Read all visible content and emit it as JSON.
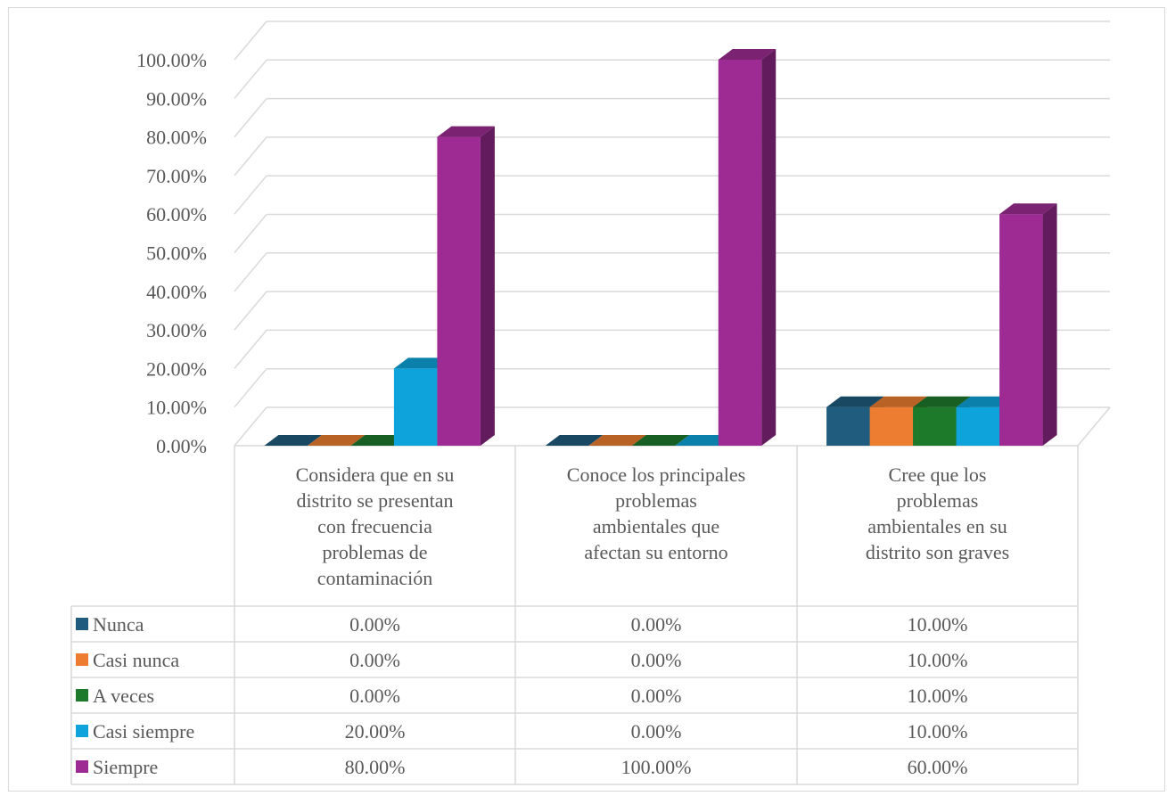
{
  "chart_data": {
    "type": "bar",
    "title": "",
    "xlabel": "",
    "ylabel": "",
    "ylim": [
      0,
      100
    ],
    "y_ticks": [
      "0.00%",
      "10.00%",
      "20.00%",
      "30.00%",
      "40.00%",
      "50.00%",
      "60.00%",
      "70.00%",
      "80.00%",
      "90.00%",
      "100.00%"
    ],
    "grid": true,
    "legend": "data-table",
    "categories": [
      [
        "Considera que en su",
        "distrito se presentan",
        "con frecuencia",
        "problemas de",
        "contaminación"
      ],
      [
        "Conoce los principales",
        "problemas",
        "ambientales que",
        "afectan su entorno"
      ],
      [
        "Cree que los",
        "problemas",
        "ambientales en su",
        "distrito son graves"
      ]
    ],
    "series": [
      {
        "name": "Nunca",
        "color": "#1f5c7e",
        "values": [
          0,
          0,
          10
        ],
        "labels": [
          "0.00%",
          "0.00%",
          "10.00%"
        ]
      },
      {
        "name": "Casi nunca",
        "color": "#ed7d31",
        "values": [
          0,
          0,
          10
        ],
        "labels": [
          "0.00%",
          "0.00%",
          "10.00%"
        ]
      },
      {
        "name": "A veces",
        "color": "#1e7a2b",
        "values": [
          0,
          0,
          10
        ],
        "labels": [
          "0.00%",
          "0.00%",
          "10.00%"
        ]
      },
      {
        "name": "Casi siempre",
        "color": "#0ea4db",
        "values": [
          20,
          0,
          10
        ],
        "labels": [
          "20.00%",
          "0.00%",
          "10.00%"
        ]
      },
      {
        "name": "Siempre",
        "color": "#9e2b94",
        "values": [
          80,
          100,
          60
        ],
        "labels": [
          "80.00%",
          "100.00%",
          "60.00%"
        ]
      }
    ]
  }
}
